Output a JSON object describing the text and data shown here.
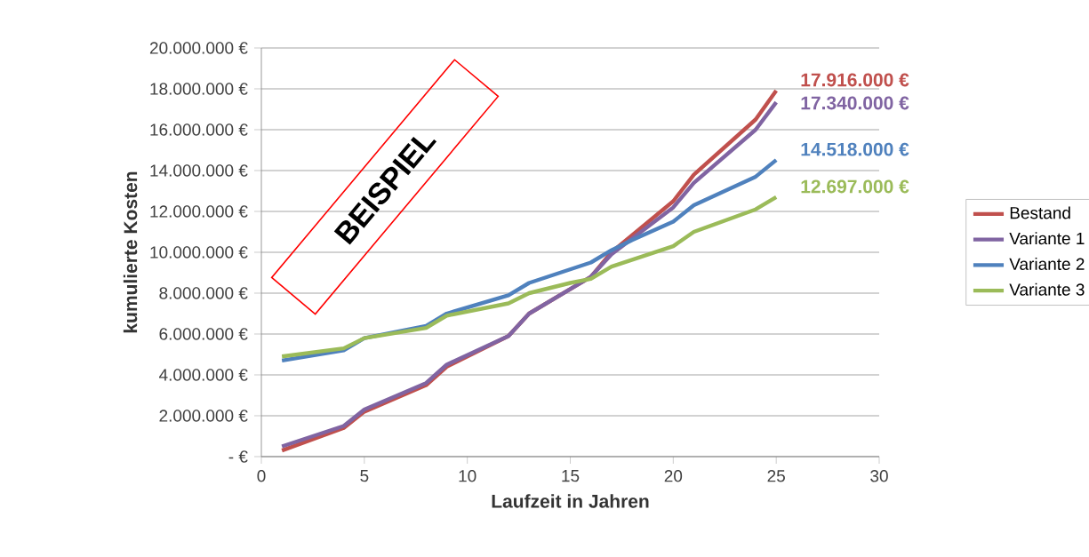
{
  "chart_data": {
    "type": "line",
    "xlabel": "Laufzeit in Jahren",
    "ylabel": "kumulierte Kosten",
    "annotations": [
      "BEISPIEL"
    ],
    "series": [
      {
        "name": "Bestand",
        "color": "#c0504d",
        "x": [
          1,
          4,
          5,
          8,
          9,
          12,
          13,
          15,
          16,
          17,
          20,
          21,
          24,
          25
        ],
        "values": [
          300000,
          1400000,
          2200000,
          3500000,
          4400000,
          5900000,
          7000000,
          8200000,
          8800000,
          10000000,
          12500000,
          13800000,
          16500000,
          17916000
        ],
        "value_labels": [
          null,
          null,
          null,
          null,
          null,
          null,
          null,
          null,
          null,
          null,
          null,
          null,
          null,
          "17.916.000 €"
        ]
      },
      {
        "name": "Variante 1",
        "color": "#8064a2",
        "x": [
          1,
          4,
          5,
          8,
          9,
          12,
          13,
          15,
          16,
          17,
          20,
          21,
          24,
          25
        ],
        "values": [
          500000,
          1500000,
          2300000,
          3600000,
          4500000,
          5900000,
          7000000,
          8200000,
          8800000,
          9900000,
          12200000,
          13400000,
          16000000,
          17340000
        ],
        "value_labels": [
          null,
          null,
          null,
          null,
          null,
          null,
          null,
          null,
          null,
          null,
          null,
          null,
          null,
          "17.340.000 €"
        ]
      },
      {
        "name": "Variante 2",
        "color": "#4f81bd",
        "x": [
          1,
          4,
          5,
          8,
          9,
          12,
          13,
          16,
          17,
          18,
          20,
          21,
          24,
          25
        ],
        "values": [
          4700000,
          5200000,
          5800000,
          6400000,
          7000000,
          7900000,
          8500000,
          9500000,
          10100000,
          10600000,
          11500000,
          12300000,
          13700000,
          14518000
        ],
        "value_labels": [
          null,
          null,
          null,
          null,
          null,
          null,
          null,
          null,
          null,
          null,
          null,
          null,
          null,
          "14.518.000 €"
        ]
      },
      {
        "name": "Variante 3",
        "color": "#9bbb59",
        "x": [
          1,
          4,
          5,
          8,
          9,
          12,
          13,
          15,
          16,
          17,
          20,
          21,
          24,
          25
        ],
        "values": [
          4900000,
          5300000,
          5800000,
          6300000,
          6900000,
          7500000,
          8000000,
          8500000,
          8700000,
          9300000,
          10300000,
          11000000,
          12100000,
          12697000
        ],
        "value_labels": [
          null,
          null,
          null,
          null,
          null,
          null,
          null,
          null,
          null,
          null,
          null,
          null,
          null,
          "12.697.000 €"
        ]
      }
    ],
    "xlim": [
      0,
      30
    ],
    "xticks": [
      0,
      5,
      10,
      15,
      20,
      25,
      30
    ],
    "ylim": [
      0,
      20000000
    ],
    "yticks": [
      {
        "value": 0,
        "label": "-  €"
      },
      {
        "value": 2000000,
        "label": "2.000.000 €"
      },
      {
        "value": 4000000,
        "label": "4.000.000 €"
      },
      {
        "value": 6000000,
        "label": "6.000.000 €"
      },
      {
        "value": 8000000,
        "label": "8.000.000 €"
      },
      {
        "value": 10000000,
        "label": "10.000.000 €"
      },
      {
        "value": 12000000,
        "label": "12.000.000 €"
      },
      {
        "value": 14000000,
        "label": "14.000.000 €"
      },
      {
        "value": 16000000,
        "label": "16.000.000 €"
      },
      {
        "value": 18000000,
        "label": "18.000.000 €"
      },
      {
        "value": 20000000,
        "label": "20.000.000 €"
      }
    ],
    "grid": "y",
    "legend": "right"
  }
}
